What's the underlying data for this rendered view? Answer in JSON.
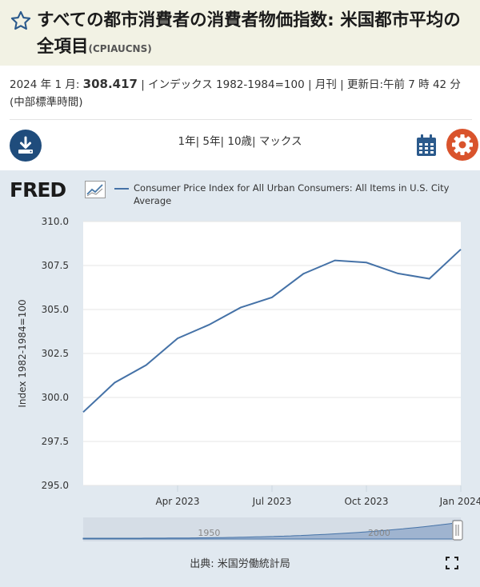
{
  "header": {
    "title": "すべての都市消費者の消費者物価指数: 米国都市平均の全項目",
    "series_code": "(CPIAUCNS)"
  },
  "meta": {
    "date_label": "2024 年 1 月:",
    "value": "308.417",
    "rest": "| インデックス 1982-1984=100 | 月刊 | 更新日:午前 7 時 42 分 (中部標準時間)"
  },
  "toolbar": {
    "ranges": [
      "1年",
      "5年",
      "10歳",
      "マックス"
    ]
  },
  "brand": {
    "logo": "FRED"
  },
  "colors": {
    "line": "#4572a7",
    "navigator_fill": "#9fb4d0",
    "download_bg": "#1f4c7c",
    "gear_bg": "#d9532c"
  },
  "chart_data": {
    "type": "line",
    "title": "Consumer Price Index for All Urban Consumers: All Items in U.S. City Average",
    "ylabel": "Index 1982-1984=100",
    "xlabel": "",
    "ylim": [
      295.0,
      310.0
    ],
    "yticks": [
      "310.0",
      "307.5",
      "305.0",
      "302.5",
      "300.0",
      "297.5",
      "295.0"
    ],
    "ytick_values": [
      310.0,
      307.5,
      305.0,
      302.5,
      300.0,
      297.5,
      295.0
    ],
    "xticks": [
      {
        "label": "Apr 2023",
        "index": 3
      },
      {
        "label": "Jul 2023",
        "index": 6
      },
      {
        "label": "Oct 2023",
        "index": 9
      },
      {
        "label": "Jan 2024",
        "index": 12
      }
    ],
    "x": [
      "2023-01",
      "2023-02",
      "2023-03",
      "2023-04",
      "2023-05",
      "2023-06",
      "2023-07",
      "2023-08",
      "2023-09",
      "2023-10",
      "2023-11",
      "2023-12",
      "2024-01"
    ],
    "series": [
      {
        "name": "Consumer Price Index for All Urban Consumers: All Items in U.S. City Average",
        "values": [
          299.17,
          300.84,
          301.84,
          303.36,
          304.13,
          305.11,
          305.69,
          307.03,
          307.79,
          307.67,
          307.05,
          306.75,
          308.42
        ]
      }
    ],
    "grid": true,
    "legend": "top",
    "navigator": {
      "labels": [
        "1950",
        "2000"
      ],
      "label_years": [
        1950,
        2000
      ],
      "year_range": [
        1913,
        2024
      ]
    }
  },
  "footer": {
    "source": "出典: 米国労働統計局"
  }
}
